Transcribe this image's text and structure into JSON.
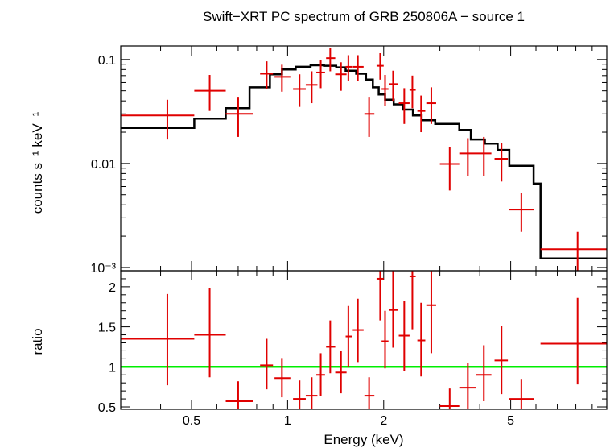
{
  "title": "Swift−XRT PC spectrum of GRB 250806A − source 1",
  "chart_data": [
    {
      "type": "line",
      "panel": "spectrum",
      "ylabel": "counts s⁻¹ keV⁻¹",
      "xscale": "log",
      "yscale": "log",
      "xlim": [
        0.3,
        10
      ],
      "ylim": [
        0.00093,
        0.135
      ],
      "yticks": [
        {
          "v": 0.1,
          "label": "0.1"
        },
        {
          "v": 0.01,
          "label": "0.01"
        },
        {
          "v": 0.001,
          "label": "10⁻³"
        }
      ],
      "model_color": "#000000",
      "data_color": "#e00000",
      "model_steps": [
        [
          0.3,
          0.022
        ],
        [
          0.51,
          0.027
        ],
        [
          0.64,
          0.034
        ],
        [
          0.76,
          0.054
        ],
        [
          0.88,
          0.072
        ],
        [
          0.96,
          0.08
        ],
        [
          1.06,
          0.085
        ],
        [
          1.18,
          0.088
        ],
        [
          1.3,
          0.087
        ],
        [
          1.42,
          0.084
        ],
        [
          1.52,
          0.078
        ],
        [
          1.64,
          0.073
        ],
        [
          1.76,
          0.064
        ],
        [
          1.85,
          0.054
        ],
        [
          1.93,
          0.046
        ],
        [
          2.02,
          0.041
        ],
        [
          2.15,
          0.037
        ],
        [
          2.3,
          0.033
        ],
        [
          2.47,
          0.029
        ],
        [
          2.63,
          0.026
        ],
        [
          2.9,
          0.024
        ],
        [
          3.45,
          0.021
        ],
        [
          3.75,
          0.017
        ],
        [
          4.15,
          0.0155
        ],
        [
          4.55,
          0.0135
        ],
        [
          4.95,
          0.0095
        ],
        [
          5.9,
          0.0064
        ],
        [
          6.2,
          0.00122
        ],
        [
          10,
          0.00122
        ]
      ],
      "points": [
        {
          "x": 0.42,
          "xlo": 0.3,
          "xhi": 0.51,
          "y": 0.029,
          "ylo": 0.017,
          "yhi": 0.041
        },
        {
          "x": 0.57,
          "xlo": 0.51,
          "xhi": 0.64,
          "y": 0.05,
          "ylo": 0.032,
          "yhi": 0.071
        },
        {
          "x": 0.7,
          "xlo": 0.64,
          "xhi": 0.78,
          "y": 0.03,
          "ylo": 0.018,
          "yhi": 0.043
        },
        {
          "x": 0.86,
          "xlo": 0.82,
          "xhi": 0.9,
          "y": 0.073,
          "ylo": 0.052,
          "yhi": 0.096
        },
        {
          "x": 0.96,
          "xlo": 0.91,
          "xhi": 1.02,
          "y": 0.068,
          "ylo": 0.049,
          "yhi": 0.089
        },
        {
          "x": 1.09,
          "xlo": 1.04,
          "xhi": 1.14,
          "y": 0.052,
          "ylo": 0.035,
          "yhi": 0.072
        },
        {
          "x": 1.19,
          "xlo": 1.14,
          "xhi": 1.24,
          "y": 0.057,
          "ylo": 0.038,
          "yhi": 0.077
        },
        {
          "x": 1.27,
          "xlo": 1.23,
          "xhi": 1.31,
          "y": 0.075,
          "ylo": 0.053,
          "yhi": 0.099
        },
        {
          "x": 1.36,
          "xlo": 1.32,
          "xhi": 1.41,
          "y": 0.103,
          "ylo": 0.077,
          "yhi": 0.13
        },
        {
          "x": 1.47,
          "xlo": 1.41,
          "xhi": 1.53,
          "y": 0.072,
          "ylo": 0.05,
          "yhi": 0.094
        },
        {
          "x": 1.55,
          "xlo": 1.52,
          "xhi": 1.59,
          "y": 0.085,
          "ylo": 0.062,
          "yhi": 0.11
        },
        {
          "x": 1.66,
          "xlo": 1.6,
          "xhi": 1.73,
          "y": 0.085,
          "ylo": 0.062,
          "yhi": 0.11
        },
        {
          "x": 1.8,
          "xlo": 1.74,
          "xhi": 1.87,
          "y": 0.03,
          "ylo": 0.018,
          "yhi": 0.043
        },
        {
          "x": 1.95,
          "xlo": 1.9,
          "xhi": 2.0,
          "y": 0.087,
          "ylo": 0.064,
          "yhi": 0.115
        },
        {
          "x": 2.02,
          "xlo": 1.97,
          "xhi": 2.07,
          "y": 0.052,
          "ylo": 0.036,
          "yhi": 0.071
        },
        {
          "x": 2.14,
          "xlo": 2.08,
          "xhi": 2.21,
          "y": 0.058,
          "ylo": 0.04,
          "yhi": 0.078
        },
        {
          "x": 2.32,
          "xlo": 2.23,
          "xhi": 2.41,
          "y": 0.038,
          "ylo": 0.024,
          "yhi": 0.053
        },
        {
          "x": 2.46,
          "xlo": 2.41,
          "xhi": 2.52,
          "y": 0.051,
          "ylo": 0.034,
          "yhi": 0.07
        },
        {
          "x": 2.62,
          "xlo": 2.55,
          "xhi": 2.7,
          "y": 0.032,
          "ylo": 0.02,
          "yhi": 0.045
        },
        {
          "x": 2.82,
          "xlo": 2.72,
          "xhi": 2.92,
          "y": 0.038,
          "ylo": 0.024,
          "yhi": 0.054
        },
        {
          "x": 3.22,
          "xlo": 3.0,
          "xhi": 3.45,
          "y": 0.0099,
          "ylo": 0.0055,
          "yhi": 0.0145
        },
        {
          "x": 3.67,
          "xlo": 3.45,
          "xhi": 3.9,
          "y": 0.0125,
          "ylo": 0.0075,
          "yhi": 0.0175
        },
        {
          "x": 4.12,
          "xlo": 3.9,
          "xhi": 4.35,
          "y": 0.0125,
          "ylo": 0.0075,
          "yhi": 0.018
        },
        {
          "x": 4.68,
          "xlo": 4.45,
          "xhi": 4.9,
          "y": 0.0111,
          "ylo": 0.0067,
          "yhi": 0.0157
        },
        {
          "x": 5.4,
          "xlo": 4.95,
          "xhi": 5.9,
          "y": 0.0036,
          "ylo": 0.0022,
          "yhi": 0.0052
        },
        {
          "x": 8.1,
          "xlo": 6.2,
          "xhi": 10,
          "y": 0.0015,
          "ylo": 0.00093,
          "yhi": 0.0022
        }
      ]
    },
    {
      "type": "scatter",
      "panel": "ratio",
      "xlabel": "Energy (keV)",
      "ylabel": "ratio",
      "xscale": "log",
      "xlim": [
        0.3,
        10
      ],
      "ylim": [
        0.47,
        2.2
      ],
      "xticks": [
        {
          "v": 0.5,
          "label": "0.5"
        },
        {
          "v": 1,
          "label": "1"
        },
        {
          "v": 2,
          "label": "2"
        },
        {
          "v": 5,
          "label": "5"
        }
      ],
      "yticks": [
        {
          "v": 0.5,
          "label": "0.5"
        },
        {
          "v": 1,
          "label": "1"
        },
        {
          "v": 1.5,
          "label": "1.5"
        },
        {
          "v": 2,
          "label": "2"
        }
      ],
      "reference_line": {
        "y": 1,
        "color": "#00ee00"
      },
      "data_color": "#e00000",
      "points": [
        {
          "x": 0.42,
          "xlo": 0.3,
          "xhi": 0.51,
          "y": 1.35,
          "ylo": 0.77,
          "yhi": 1.91
        },
        {
          "x": 0.57,
          "xlo": 0.51,
          "xhi": 0.64,
          "y": 1.4,
          "ylo": 0.87,
          "yhi": 1.98
        },
        {
          "x": 0.7,
          "xlo": 0.64,
          "xhi": 0.78,
          "y": 0.57,
          "ylo": 0.47,
          "yhi": 0.82
        },
        {
          "x": 0.86,
          "xlo": 0.82,
          "xhi": 0.9,
          "y": 1.02,
          "ylo": 0.72,
          "yhi": 1.35
        },
        {
          "x": 0.96,
          "xlo": 0.91,
          "xhi": 1.02,
          "y": 0.86,
          "ylo": 0.62,
          "yhi": 1.11
        },
        {
          "x": 1.09,
          "xlo": 1.04,
          "xhi": 1.14,
          "y": 0.6,
          "ylo": 0.47,
          "yhi": 0.83
        },
        {
          "x": 1.19,
          "xlo": 1.14,
          "xhi": 1.24,
          "y": 0.64,
          "ylo": 0.47,
          "yhi": 0.87
        },
        {
          "x": 1.27,
          "xlo": 1.23,
          "xhi": 1.31,
          "y": 0.9,
          "ylo": 0.64,
          "yhi": 1.17
        },
        {
          "x": 1.36,
          "xlo": 1.32,
          "xhi": 1.41,
          "y": 1.25,
          "ylo": 0.92,
          "yhi": 1.58
        },
        {
          "x": 1.47,
          "xlo": 1.41,
          "xhi": 1.53,
          "y": 0.93,
          "ylo": 0.67,
          "yhi": 1.2
        },
        {
          "x": 1.55,
          "xlo": 1.52,
          "xhi": 1.59,
          "y": 1.38,
          "ylo": 1.0,
          "yhi": 1.76
        },
        {
          "x": 1.66,
          "xlo": 1.6,
          "xhi": 1.73,
          "y": 1.46,
          "ylo": 1.06,
          "yhi": 1.85
        },
        {
          "x": 1.8,
          "xlo": 1.74,
          "xhi": 1.87,
          "y": 0.64,
          "ylo": 0.47,
          "yhi": 0.87
        },
        {
          "x": 1.95,
          "xlo": 1.9,
          "xhi": 2.0,
          "y": 2.1,
          "ylo": 1.58,
          "yhi": 2.2
        },
        {
          "x": 2.02,
          "xlo": 1.97,
          "xhi": 2.07,
          "y": 1.32,
          "ylo": 0.98,
          "yhi": 1.7
        },
        {
          "x": 2.14,
          "xlo": 2.08,
          "xhi": 2.21,
          "y": 1.71,
          "ylo": 1.24,
          "yhi": 2.2
        },
        {
          "x": 2.32,
          "xlo": 2.23,
          "xhi": 2.41,
          "y": 1.39,
          "ylo": 0.95,
          "yhi": 1.82
        },
        {
          "x": 2.46,
          "xlo": 2.41,
          "xhi": 2.52,
          "y": 2.13,
          "ylo": 1.47,
          "yhi": 2.2
        },
        {
          "x": 2.62,
          "xlo": 2.55,
          "xhi": 2.7,
          "y": 1.33,
          "ylo": 0.88,
          "yhi": 1.8
        },
        {
          "x": 2.82,
          "xlo": 2.72,
          "xhi": 2.92,
          "y": 1.77,
          "ylo": 1.17,
          "yhi": 2.2
        },
        {
          "x": 3.22,
          "xlo": 3.0,
          "xhi": 3.45,
          "y": 0.51,
          "ylo": 0.47,
          "yhi": 0.73
        },
        {
          "x": 3.67,
          "xlo": 3.45,
          "xhi": 3.9,
          "y": 0.74,
          "ylo": 0.47,
          "yhi": 1.05
        },
        {
          "x": 4.12,
          "xlo": 3.9,
          "xhi": 4.35,
          "y": 0.9,
          "ylo": 0.57,
          "yhi": 1.27
        },
        {
          "x": 4.68,
          "xlo": 4.45,
          "xhi": 4.9,
          "y": 1.08,
          "ylo": 0.66,
          "yhi": 1.51
        },
        {
          "x": 5.4,
          "xlo": 4.95,
          "xhi": 5.9,
          "y": 0.6,
          "ylo": 0.47,
          "yhi": 0.85
        },
        {
          "x": 8.1,
          "xlo": 6.2,
          "xhi": 10,
          "y": 1.29,
          "ylo": 0.78,
          "yhi": 1.86
        }
      ]
    }
  ]
}
